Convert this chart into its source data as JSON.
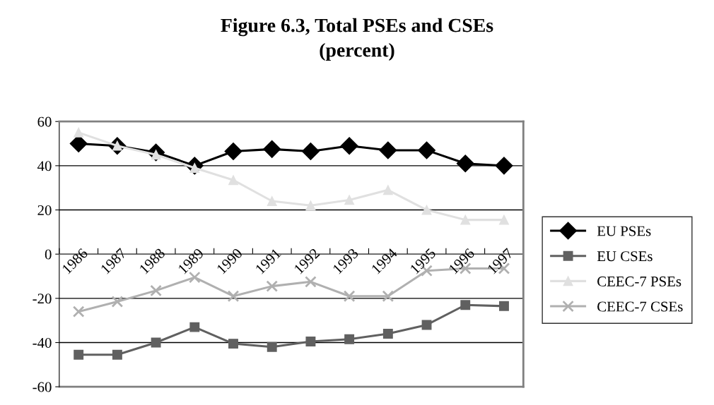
{
  "chart_data": {
    "type": "line",
    "title": "Figure 6.3, Total PSEs and CSEs\n(percent)",
    "categories": [
      "1986",
      "1987",
      "1988",
      "1989",
      "1990",
      "1991",
      "1992",
      "1993",
      "1994",
      "1995",
      "1996",
      "1997"
    ],
    "series": [
      {
        "name": "EU PSEs",
        "color": "#000000",
        "marker": "diamond",
        "values": [
          50,
          49,
          46,
          40,
          46.5,
          47.5,
          46.5,
          49,
          47,
          47,
          41,
          40
        ]
      },
      {
        "name": "EU CSEs",
        "color": "#606060",
        "marker": "square",
        "values": [
          -45.5,
          -45.5,
          -40,
          -33,
          -40.5,
          -42,
          -39.5,
          -38.5,
          -36,
          -32,
          -23,
          -23.5
        ]
      },
      {
        "name": "CEEC-7 PSEs",
        "color": "#e0e0e0",
        "marker": "triangle",
        "values": [
          55,
          49,
          45,
          39,
          33.5,
          24,
          22,
          24.5,
          29,
          20,
          15.5,
          15.5
        ]
      },
      {
        "name": "CEEC-7 CSEs",
        "color": "#b0b0b0",
        "marker": "cross",
        "values": [
          -26,
          -21.5,
          -16.5,
          -10.5,
          -19,
          -14.5,
          -12.5,
          -19,
          -19,
          -7.5,
          -6.5,
          -6.5
        ]
      }
    ],
    "ylim": [
      -60,
      60
    ],
    "yticks": [
      -60,
      -40,
      -20,
      0,
      20,
      40,
      60
    ],
    "grid": "y",
    "legend": "right",
    "line_style": "solid"
  }
}
